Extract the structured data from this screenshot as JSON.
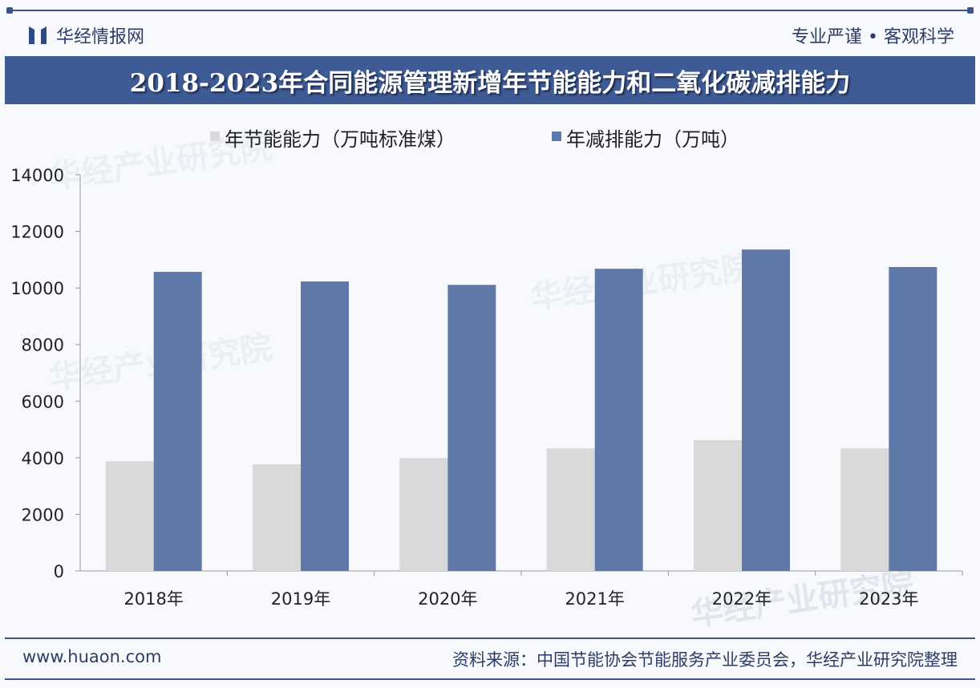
{
  "header": {
    "logo_text": "华经情报网",
    "slogan": "专业严谨 • 客观科学"
  },
  "chart_data": {
    "type": "bar",
    "title": "2018-2023年合同能源管理新增年节能能力和二氧化碳减排能力",
    "categories": [
      "2018年",
      "2019年",
      "2020年",
      "2021年",
      "2022年",
      "2023年"
    ],
    "series": [
      {
        "name": "年节能能力（万吨标准煤）",
        "color": "#d9d9d9",
        "values": [
          3880,
          3770,
          3990,
          4330,
          4620,
          4330
        ]
      },
      {
        "name": "年减排能力（万吨）",
        "color": "#5f79a8",
        "values": [
          10570,
          10230,
          10110,
          10680,
          11360,
          10740
        ]
      }
    ],
    "ylim": [
      0,
      14000
    ],
    "yticks": [
      0,
      2000,
      4000,
      6000,
      8000,
      10000,
      12000,
      14000
    ],
    "grid": false,
    "legend": "top-center",
    "xlabel": "",
    "ylabel": ""
  },
  "watermark": {
    "text": "华经产业研究院",
    "url": "www.huaon.com"
  },
  "footer": {
    "website": "www.huaon.com",
    "source": "资料来源：中国节能协会节能服务产业委员会，华经产业研究院整理"
  }
}
